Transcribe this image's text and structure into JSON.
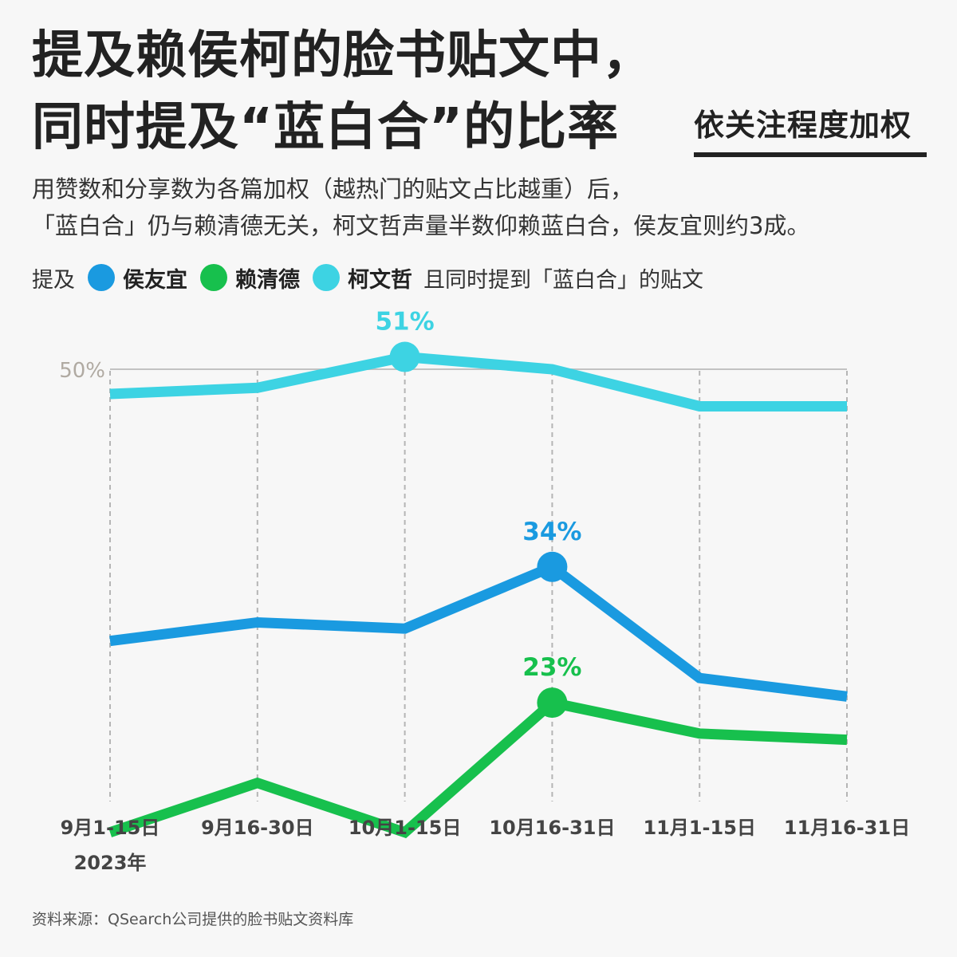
{
  "title_line1": "提及赖侯柯的脸书贴文中，",
  "title_line2": "同时提及“蓝白合”的比率",
  "badge": "依关注程度加权",
  "subtitle_line1": "用赞数和分享数为各篇加权（越热门的贴文占比越重）后，",
  "subtitle_line2": "「蓝白合」仍与赖清德无关，柯文哲声量半数仰赖蓝白合，侯友宜则约3成。",
  "legend": {
    "prefix": "提及",
    "suffix": "且同时提到「蓝白合」的贴文",
    "items": [
      {
        "name": "侯友宜",
        "color": "#1a9ae0"
      },
      {
        "name": "赖清德",
        "color": "#17c04d"
      },
      {
        "name": "柯文哲",
        "color": "#3dd3e3"
      }
    ]
  },
  "source": "资料来源：QSearch公司提供的脸书贴文资料库",
  "chart_data": {
    "type": "line",
    "categories": [
      "9月1-15日",
      "9月16-30日",
      "10月1-15日",
      "10月16-31日",
      "11月1-15日",
      "11月16-31日"
    ],
    "x_sublabel": "2023年",
    "y_gridline": {
      "value": 50,
      "label": "50%"
    },
    "ylim": [
      0,
      55
    ],
    "series": [
      {
        "name": "柯文哲",
        "color": "#3dd3e3",
        "values": [
          48,
          48.5,
          51,
          50,
          47,
          47
        ],
        "highlight_index": 2,
        "highlight_label": "51%"
      },
      {
        "name": "侯友宜",
        "color": "#1a9ae0",
        "values": [
          28,
          29.5,
          29,
          34,
          25,
          23.5
        ],
        "highlight_index": 3,
        "highlight_label": "34%"
      },
      {
        "name": "赖清德",
        "color": "#17c04d",
        "values": [
          12.5,
          16.5,
          12.5,
          23,
          20.5,
          20
        ],
        "highlight_index": 3,
        "highlight_label": "23%"
      }
    ]
  }
}
